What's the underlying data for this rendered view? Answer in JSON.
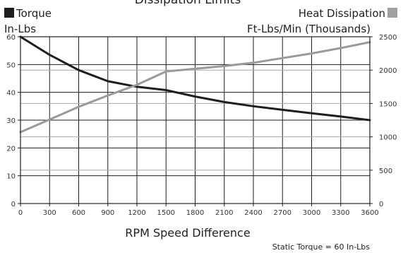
{
  "chart_data": {
    "type": "line",
    "title": "Dissipation Limits",
    "xlabel": "RPM Speed Difference",
    "x_ticks": [
      0,
      300,
      600,
      900,
      1200,
      1500,
      1800,
      2100,
      2400,
      2700,
      3000,
      3300,
      3600
    ],
    "xlim": [
      0,
      3600
    ],
    "y_left": {
      "label_line1": "Torque",
      "label_line2": "In-Lbs",
      "ticks": [
        0,
        10,
        20,
        30,
        40,
        50,
        60
      ],
      "lim": [
        0,
        60
      ]
    },
    "y_right": {
      "label_line1": "Heat Dissipation",
      "label_line2": "Ft-Lbs/Min (Thousands)",
      "ticks": [
        0,
        500,
        1000,
        1500,
        2000,
        2500
      ],
      "lim": [
        0,
        2500
      ]
    },
    "grid": true,
    "series": [
      {
        "name": "Torque",
        "axis": "left",
        "color": "#1e1e1e",
        "x": [
          0,
          300,
          600,
          900,
          1200,
          1500,
          1800,
          2100,
          2400,
          2700,
          3000,
          3300,
          3600
        ],
        "y": [
          60,
          53.5,
          48,
          44,
          42,
          40.8,
          38.5,
          36.5,
          35,
          33.7,
          32.5,
          31.3,
          30
        ]
      },
      {
        "name": "Heat Dissipation",
        "axis": "right",
        "color": "#9a9a9a",
        "x": [
          0,
          300,
          600,
          900,
          1200,
          1500,
          1800,
          2100,
          2400,
          2700,
          3000,
          3300,
          3600
        ],
        "y": [
          1070,
          1260,
          1450,
          1620,
          1780,
          1980,
          2020,
          2060,
          2110,
          2180,
          2250,
          2330,
          2420
        ]
      }
    ],
    "annotation": "Static Torque = 60 In-Lbs"
  }
}
